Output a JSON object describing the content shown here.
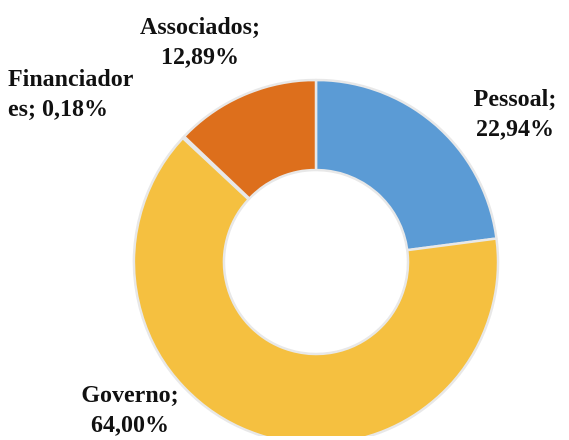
{
  "chart_data": {
    "type": "donut",
    "categories": [
      "Pessoal;",
      "Governo;",
      "Financiadores;",
      "Associados;"
    ],
    "values": [
      22.94,
      64.0,
      0.18,
      12.89
    ],
    "value_labels": [
      "22,94%",
      "64,00%",
      "0,18%",
      "12,89%"
    ],
    "colors": [
      "#5b9bd5",
      "#f5c040",
      "#a5a5a5",
      "#dd6f1c"
    ]
  }
}
